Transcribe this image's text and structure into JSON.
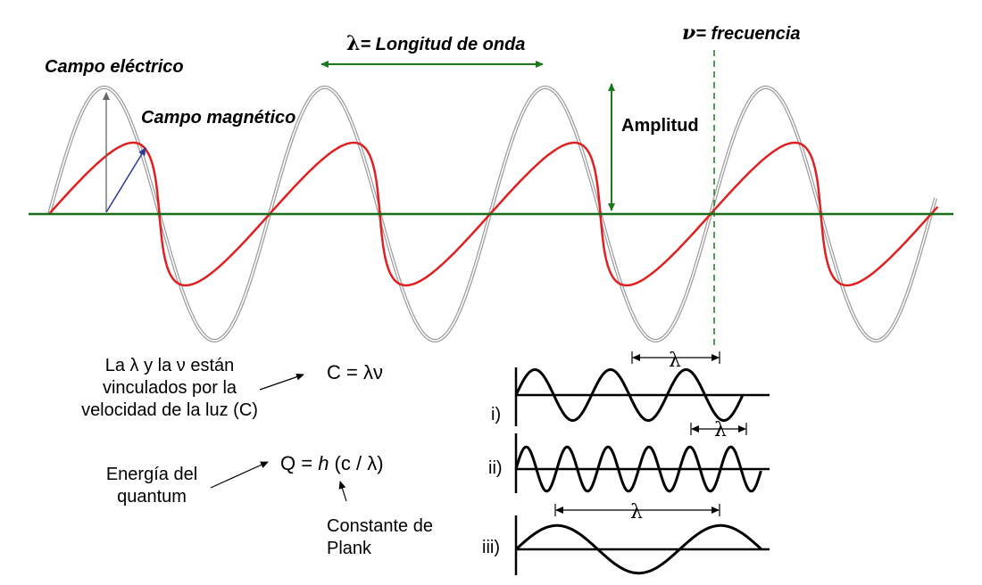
{
  "labels": {
    "campo_electrico": "Campo eléctrico",
    "campo_magnetico": "Campo magnético",
    "lambda_symbol": "λ",
    "longitud_de_onda": "= Longitud de onda",
    "nu_symbol": "ν",
    "frecuencia": "= frecuencia",
    "amplitud": "Amplitud"
  },
  "relation": {
    "text_lines": [
      "La λ y la ν están",
      "vinculados por la",
      "velocidad de la luz (C)"
    ],
    "formula": "C = λν"
  },
  "energy": {
    "text_lines": [
      "Energía del",
      "quantum"
    ],
    "formula_prefix": "Q = ",
    "formula_h": "h",
    "formula_suffix": " (c / λ)",
    "constant_lines": [
      "Constante de",
      "Plank"
    ]
  },
  "examples": [
    {
      "label": "i)",
      "lambda": "λ",
      "cycles": 3
    },
    {
      "label": "ii)",
      "lambda": "λ",
      "cycles": 6
    },
    {
      "label": "iii)",
      "lambda": "λ",
      "cycles": 1.5
    }
  ],
  "colors": {
    "electric_wave": "#9a9a9a",
    "magnetic_wave": "#e02020",
    "axis": "#1a6b1a",
    "annotation_green": "#1a7a1a",
    "vector_blue": "#2a3a9a",
    "black": "#000000"
  }
}
